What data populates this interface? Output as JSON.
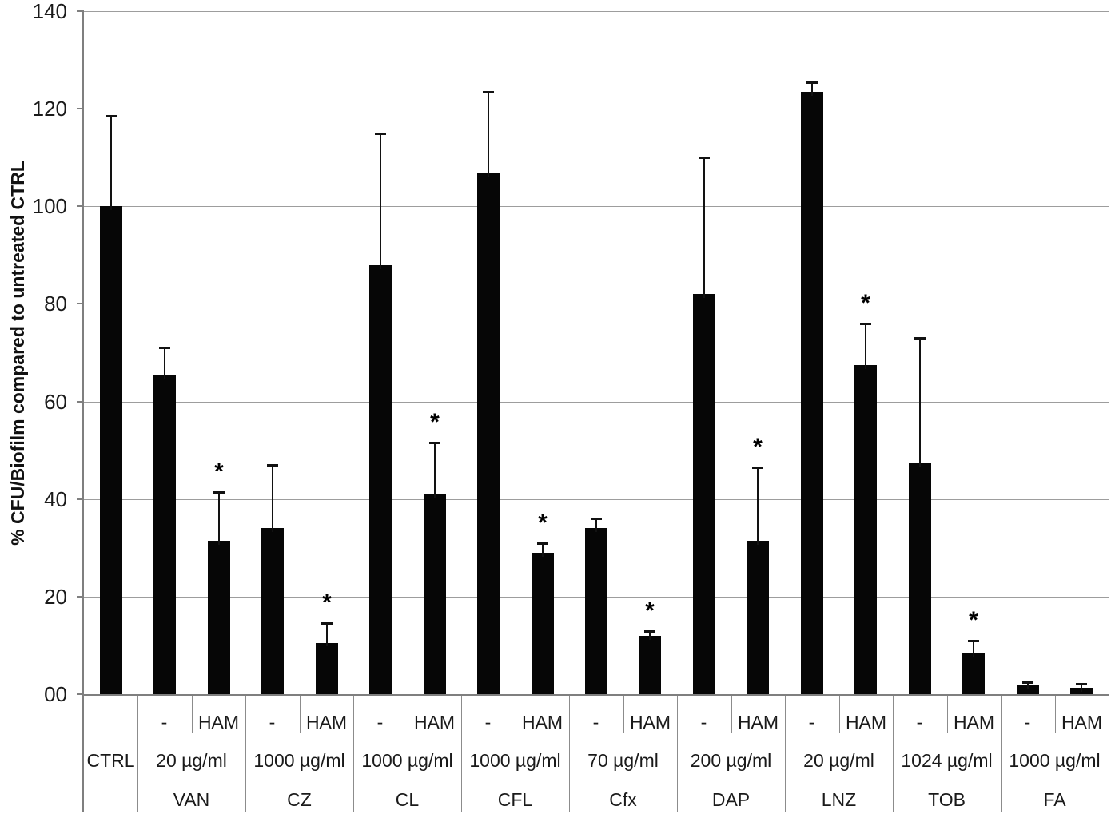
{
  "figure": {
    "background_color": "#ffffff",
    "bar_color": "#060606",
    "gridline_color": "#9d9d9d",
    "axis_color": "#7f7f7f"
  },
  "chart_data": {
    "type": "bar",
    "title": "",
    "xlabel": "",
    "ylabel": "% CFU/Biofilm compared to untreated CTRL",
    "ylim": [
      0,
      140
    ],
    "ytick_interval": 20,
    "ytick_labels": [
      "00",
      "20",
      "40",
      "60",
      "80",
      "100",
      "120",
      "140"
    ],
    "grid": true,
    "legend": false,
    "significance_marker": "*",
    "error_bars": "upper only, capped",
    "groups": [
      {
        "drug": "CTRL",
        "concentration": "",
        "bars": [
          {
            "treatment": "",
            "value": 100,
            "err_top": 118.5,
            "significant": false
          }
        ]
      },
      {
        "drug": "VAN",
        "concentration": "20 µg/ml",
        "bars": [
          {
            "treatment": "-",
            "value": 65.5,
            "err_top": 71,
            "significant": false
          },
          {
            "treatment": "HAM",
            "value": 31.5,
            "err_top": 41.5,
            "significant": true
          }
        ]
      },
      {
        "drug": "CZ",
        "concentration": "1000 µg/ml",
        "bars": [
          {
            "treatment": "-",
            "value": 34,
            "err_top": 47,
            "significant": false
          },
          {
            "treatment": "HAM",
            "value": 10.5,
            "err_top": 14.5,
            "significant": true
          }
        ]
      },
      {
        "drug": "CL",
        "concentration": "1000 µg/ml",
        "bars": [
          {
            "treatment": "-",
            "value": 88,
            "err_top": 115,
            "significant": false
          },
          {
            "treatment": "HAM",
            "value": 41,
            "err_top": 51.5,
            "significant": true
          }
        ]
      },
      {
        "drug": "CFL",
        "concentration": "1000 µg/ml",
        "bars": [
          {
            "treatment": "-",
            "value": 107,
            "err_top": 123.5,
            "significant": false
          },
          {
            "treatment": "HAM",
            "value": 29,
            "err_top": 31,
            "significant": true
          }
        ]
      },
      {
        "drug": "Cfx",
        "concentration": "70 µg/ml",
        "bars": [
          {
            "treatment": "-",
            "value": 34,
            "err_top": 36,
            "significant": false
          },
          {
            "treatment": "HAM",
            "value": 12,
            "err_top": 13,
            "significant": true
          }
        ]
      },
      {
        "drug": "DAP",
        "concentration": "200 µg/ml",
        "bars": [
          {
            "treatment": "-",
            "value": 82,
            "err_top": 110,
            "significant": false
          },
          {
            "treatment": "HAM",
            "value": 31.5,
            "err_top": 46.5,
            "significant": true
          }
        ]
      },
      {
        "drug": "LNZ",
        "concentration": "20 µg/ml",
        "bars": [
          {
            "treatment": "-",
            "value": 123.5,
            "err_top": 125.5,
            "significant": false
          },
          {
            "treatment": "HAM",
            "value": 67.5,
            "err_top": 76,
            "significant": true
          }
        ]
      },
      {
        "drug": "TOB",
        "concentration": "1024 µg/ml",
        "bars": [
          {
            "treatment": "-",
            "value": 47.5,
            "err_top": 73,
            "significant": false
          },
          {
            "treatment": "HAM",
            "value": 8.5,
            "err_top": 11,
            "significant": true
          }
        ]
      },
      {
        "drug": "FA",
        "concentration": "1000 µg/ml",
        "bars": [
          {
            "treatment": "-",
            "value": 2,
            "err_top": 2.5,
            "significant": false
          },
          {
            "treatment": "HAM",
            "value": 1.3,
            "err_top": 2.2,
            "significant": false
          }
        ]
      }
    ]
  }
}
